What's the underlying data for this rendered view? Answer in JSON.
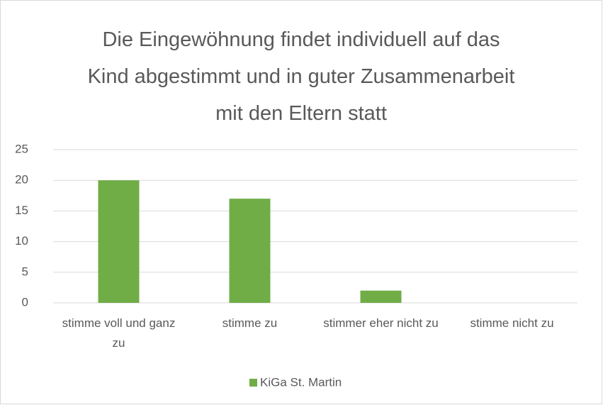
{
  "chart_data": {
    "type": "bar",
    "title": "Die Eingewöhnung findet individuell auf das Kind abgestimmt und in guter Zusammenarbeit mit den Eltern statt",
    "categories": [
      "stimme voll und ganz zu",
      "stimme zu",
      "stimmer eher nicht zu",
      "stimme nicht zu"
    ],
    "series": [
      {
        "name": "KiGa St. Martin",
        "color": "#70ad47",
        "values": [
          20,
          17,
          2,
          0
        ]
      }
    ],
    "ylim": [
      0,
      25
    ],
    "yticks": [
      0,
      5,
      10,
      15,
      20,
      25
    ],
    "grid": true,
    "legend": "bottom"
  }
}
